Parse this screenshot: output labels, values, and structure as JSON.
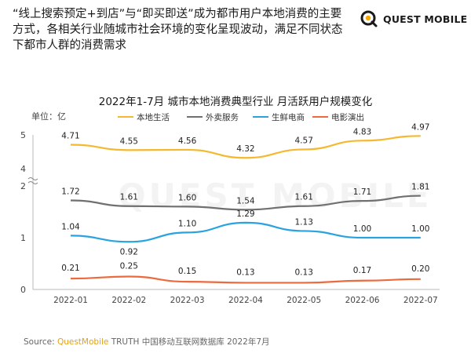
{
  "header": {
    "headline": "“线上搜索预定+到店”与“即买即送”成为都市用户本地消费的主要方式，各相关行业随城市社会环境的变化呈现波动，满足不同状态下都市人群的消费需求",
    "brand_name": "QUEST MOBILE"
  },
  "watermark": "QUEST MOBILE",
  "footer": {
    "source_label": "Source: ",
    "source_brand": "QuestMobile",
    "source_rest": " TRUTH 中国移动互联网数据库 2022年7月"
  },
  "colors": {
    "本地生活": "#f5b82e",
    "外卖服务": "#707070",
    "生鲜电商": "#29a3df",
    "电影演出": "#ec6a3d",
    "brand_accent": "#f2a900"
  },
  "chart_data": {
    "type": "line",
    "title": "2022年1-7月 城市本地消费典型行业 月活跃用户规模变化",
    "ylabel": "单位：亿",
    "y_ticks": [
      "0",
      "1",
      "2",
      "4",
      "5"
    ],
    "axis_break": "between 2 and 4",
    "grid": false,
    "legend_position": "top",
    "categories": [
      "2022-01",
      "2022-02",
      "2022-03",
      "2022-04",
      "2022-05",
      "2022-06",
      "2022-07"
    ],
    "series": [
      {
        "name": "本地生活",
        "values": [
          4.71,
          4.55,
          4.56,
          4.32,
          4.57,
          4.83,
          4.97
        ],
        "labels": [
          "4.71",
          "4.55",
          "4.56",
          "4.32",
          "4.57",
          "4.83",
          "4.97"
        ]
      },
      {
        "name": "外卖服务",
        "values": [
          1.72,
          1.61,
          1.6,
          1.54,
          1.61,
          1.71,
          1.81
        ],
        "labels": [
          "1.72",
          "1.61",
          "1.60",
          "1.54",
          "1.61",
          "1.71",
          "1.81"
        ]
      },
      {
        "name": "生鲜电商",
        "values": [
          1.04,
          0.92,
          1.1,
          1.29,
          1.13,
          1.0,
          1.0
        ],
        "labels": [
          "1.04",
          "0.92",
          "1.10",
          "1.29",
          "1.13",
          "1.00",
          "1.00"
        ]
      },
      {
        "name": "电影演出",
        "values": [
          0.21,
          0.25,
          0.15,
          0.13,
          0.13,
          0.17,
          0.2
        ],
        "labels": [
          "0.21",
          "0.25",
          "0.15",
          "0.13",
          "0.13",
          "0.17",
          "0.20"
        ]
      }
    ]
  }
}
